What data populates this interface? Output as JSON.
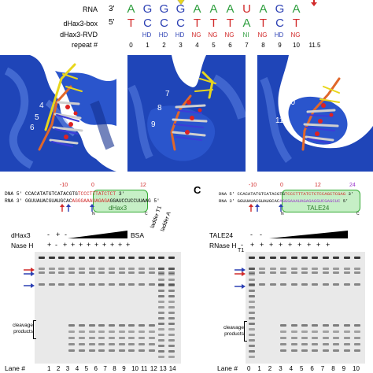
{
  "top": {
    "labels": {
      "rna": "RNA",
      "box": "dHax3-box",
      "rvd": "dHax3-RVD",
      "repeat": "repeat #"
    },
    "rna_prime": "3'",
    "box_prime": "5'",
    "rna_letters": [
      "A",
      "G",
      "G",
      "G",
      "A",
      "A",
      "A",
      "U",
      "A",
      "G",
      "A"
    ],
    "box_letters": [
      "T",
      "C",
      "C",
      "C",
      "T",
      "T",
      "T",
      "A",
      "T",
      "C",
      "T"
    ],
    "rvd_labels": [
      "HD",
      "HD",
      "HD",
      "NG",
      "NG",
      "NG",
      "NI",
      "NG",
      "HD",
      "NG"
    ],
    "repeat_numbers": [
      "0",
      "1",
      "2",
      "3",
      "4",
      "5",
      "6",
      "7",
      "8",
      "9",
      "10",
      "11.5"
    ],
    "colors": {
      "A": "#2e9e3e",
      "G": "#2b3fb3",
      "U": "#d12a2a",
      "C": "#2b3fb3",
      "T": "#d12a2a",
      "HD": "#2b3fb3",
      "NG": "#d12a2a",
      "NI": "#2e9e3e"
    }
  },
  "structures": [
    {
      "labels": [
        "4",
        "5",
        "6"
      ]
    },
    {
      "labels": [
        "7",
        "8",
        "9"
      ]
    },
    {
      "labels": [
        "10",
        "11"
      ]
    }
  ],
  "panel_b": {
    "dna_prefix": "DNA 5' CCACATATGTCATACGTG",
    "dna_box": "TCCCTTTATCTCT",
    "dna_suffix": "3'",
    "rna_prefix": "RNA 3' GGUUAUACGUAUGCAC",
    "rna_box": "AGGGAAAUAGAGA",
    "rna_suffix": "GGAUCCUCCUUAAG 5'",
    "num_left": "-10",
    "num_zero": "0",
    "num_right": "12",
    "box_label": "dHax3",
    "n_label": "N",
    "c_label": "C",
    "row1_label": "dHax3",
    "row1_values": [
      "-",
      "+",
      "-"
    ],
    "row1_bsa": "BSA",
    "row2_label": "Nase H",
    "row2_values": [
      "+",
      "-",
      "+",
      "+",
      "+",
      "+",
      "+",
      "+",
      "+",
      "+",
      "+"
    ],
    "ladder_t1": "ladder T1",
    "ladder_a": "ladder A",
    "cleavage": "cleavage products",
    "lane_label": "Lane #",
    "lanes": [
      "1",
      "2",
      "3",
      "4",
      "5",
      "6",
      "7",
      "8",
      "9",
      "10",
      "11",
      "12",
      "13",
      "14"
    ]
  },
  "panel_c": {
    "tag": "C",
    "dna_prefix": "DNA 5' CCACATATGTCATACGTG",
    "dna_box": "TCCCTTTATCTCTCCAGCTCGAG",
    "dna_suffix": "3'",
    "rna_prefix": "RNA 3' GGUUAUACGUAUGCAC",
    "rna_box": "AGGGAAAUAGAGAGGUCGAGCUC",
    "rna_suffix": "5'",
    "num_left": "-10",
    "num_zero": "0",
    "num_mid": "12",
    "num_right": "24",
    "box_label": "TALE24",
    "n_label": "N",
    "c_label": "C",
    "row1_label": "TALE24",
    "row1_values": [
      "-",
      "-"
    ],
    "row2_label": "RNase H",
    "row2_t1": "T1",
    "row2_values": [
      "-",
      "+",
      "+",
      "+",
      "+",
      "+",
      "+",
      "+",
      "+",
      "+"
    ],
    "cleavage": "cleavage products",
    "lane_label": "Lane #",
    "lanes": [
      "0",
      "1",
      "2",
      "3",
      "4",
      "5",
      "6",
      "7",
      "8",
      "9",
      "10"
    ]
  }
}
